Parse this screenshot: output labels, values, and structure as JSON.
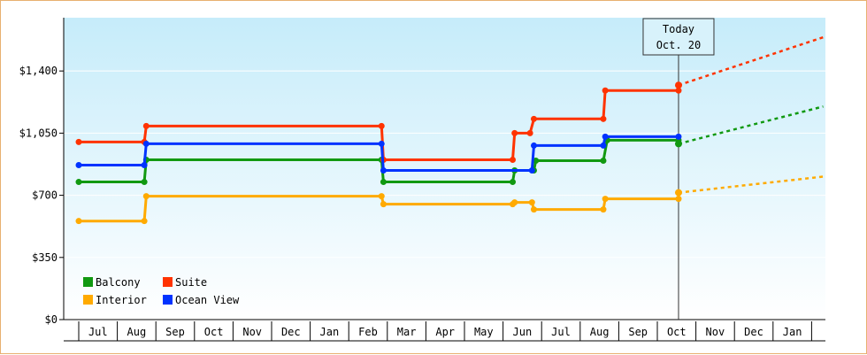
{
  "chart_data": {
    "type": "line",
    "ylim": [
      0,
      1700
    ],
    "y_ticks": [
      {
        "value": 0,
        "label": "$0"
      },
      {
        "value": 350,
        "label": "$350"
      },
      {
        "value": 700,
        "label": "$700"
      },
      {
        "value": 1050,
        "label": "$1,050"
      },
      {
        "value": 1400,
        "label": "$1,400"
      }
    ],
    "x_months": [
      "Jul",
      "Aug",
      "Sep",
      "Oct",
      "Nov",
      "Dec",
      "Jan",
      "Feb",
      "Mar",
      "Apr",
      "May",
      "Jun",
      "Jul",
      "Aug",
      "Sep",
      "Oct",
      "Nov",
      "Dec",
      "Jan"
    ],
    "today": {
      "line1": "Today",
      "line2": "Oct. 20",
      "x": 15.55
    },
    "legend_position": "bottom-left",
    "series": [
      {
        "name": "Balcony",
        "color": "#119911",
        "points": [
          [
            0,
            775
          ],
          [
            1.7,
            775
          ],
          [
            1.75,
            900
          ],
          [
            7.85,
            900
          ],
          [
            7.9,
            775
          ],
          [
            11.25,
            775
          ],
          [
            11.3,
            840
          ],
          [
            11.8,
            840
          ],
          [
            11.85,
            895
          ],
          [
            13.6,
            895
          ],
          [
            13.7,
            1010
          ],
          [
            15.55,
            1010
          ],
          [
            15.55,
            990
          ]
        ],
        "projection": [
          [
            15.55,
            990
          ],
          [
            19.3,
            1200
          ]
        ]
      },
      {
        "name": "Suite",
        "color": "#ff3300",
        "points": [
          [
            0,
            1000
          ],
          [
            1.7,
            1000
          ],
          [
            1.75,
            1090
          ],
          [
            7.85,
            1090
          ],
          [
            7.9,
            900
          ],
          [
            11.25,
            900
          ],
          [
            11.3,
            1050
          ],
          [
            11.7,
            1050
          ],
          [
            11.8,
            1130
          ],
          [
            13.6,
            1130
          ],
          [
            13.65,
            1290
          ],
          [
            15.55,
            1290
          ],
          [
            15.55,
            1320
          ]
        ],
        "projection": [
          [
            15.55,
            1320
          ],
          [
            19.3,
            1590
          ]
        ]
      },
      {
        "name": "Interior",
        "color": "#ffaa00",
        "points": [
          [
            0,
            555
          ],
          [
            1.7,
            555
          ],
          [
            1.75,
            695
          ],
          [
            7.85,
            695
          ],
          [
            7.9,
            650
          ],
          [
            11.25,
            650
          ],
          [
            11.3,
            660
          ],
          [
            11.75,
            660
          ],
          [
            11.8,
            620
          ],
          [
            13.6,
            620
          ],
          [
            13.65,
            680
          ],
          [
            15.55,
            680
          ],
          [
            15.55,
            715
          ]
        ],
        "projection": [
          [
            15.55,
            715
          ],
          [
            19.3,
            805
          ]
        ]
      },
      {
        "name": "Ocean View",
        "color": "#0033ff",
        "points": [
          [
            0,
            870
          ],
          [
            1.7,
            870
          ],
          [
            1.75,
            990
          ],
          [
            7.85,
            990
          ],
          [
            7.9,
            840
          ],
          [
            11.25,
            840
          ],
          [
            11.3,
            840
          ],
          [
            11.75,
            840
          ],
          [
            11.8,
            980
          ],
          [
            13.6,
            980
          ],
          [
            13.65,
            1030
          ],
          [
            15.55,
            1030
          ]
        ],
        "projection": []
      }
    ]
  }
}
